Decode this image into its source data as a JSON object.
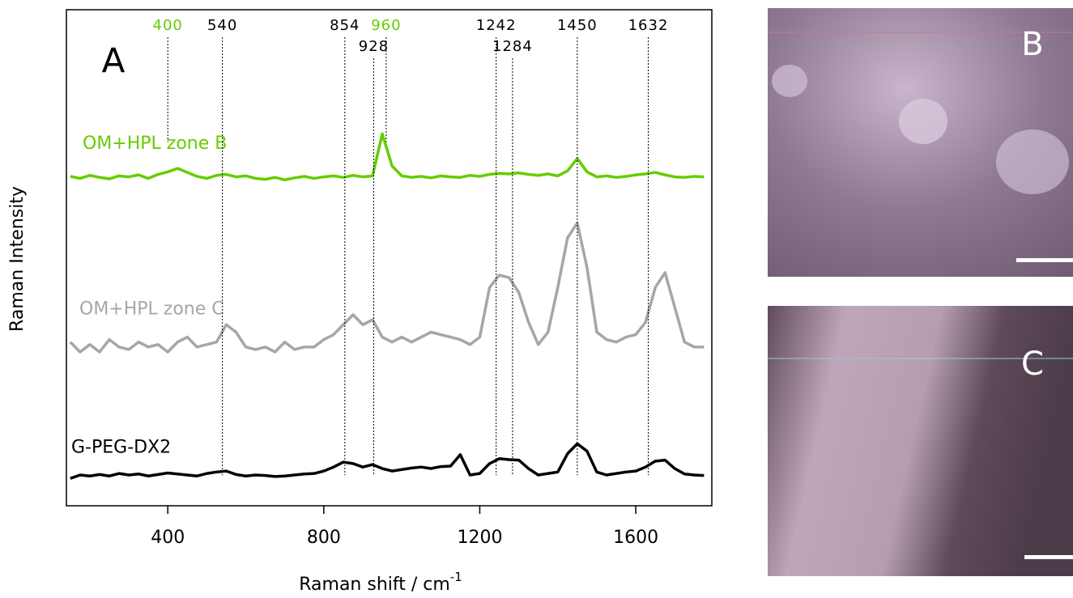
{
  "chart_data": {
    "type": "line",
    "panel_label": "A",
    "x_label": "Raman shift / cm",
    "x_label_superscript": "-1",
    "y_label": "Raman Intensity",
    "xlim": [
      140,
      1795
    ],
    "xticks": [
      400,
      800,
      1200,
      1600
    ],
    "ylim": [
      0,
      100
    ],
    "x": [
      150,
      175,
      200,
      225,
      250,
      275,
      300,
      325,
      350,
      375,
      400,
      425,
      450,
      475,
      500,
      525,
      550,
      575,
      600,
      625,
      650,
      675,
      700,
      725,
      750,
      775,
      800,
      825,
      850,
      875,
      900,
      925,
      950,
      975,
      1000,
      1025,
      1050,
      1075,
      1100,
      1125,
      1150,
      1175,
      1200,
      1225,
      1250,
      1275,
      1300,
      1325,
      1350,
      1375,
      1400,
      1425,
      1450,
      1475,
      1500,
      1525,
      1550,
      1575,
      1600,
      1625,
      1650,
      1675,
      1700,
      1725,
      1750,
      1775
    ],
    "series": [
      {
        "name": "OM+HPL zone B",
        "color": "#66cc00",
        "values": [
          66.4,
          66.0,
          66.6,
          66.2,
          65.9,
          66.5,
          66.3,
          66.7,
          66.0,
          66.8,
          67.3,
          68.0,
          67.2,
          66.4,
          66.0,
          66.6,
          66.8,
          66.3,
          66.5,
          66.0,
          65.8,
          66.2,
          65.7,
          66.1,
          66.4,
          66.0,
          66.3,
          66.5,
          66.2,
          66.6,
          66.3,
          66.5,
          75.0,
          68.5,
          66.5,
          66.2,
          66.4,
          66.1,
          66.5,
          66.3,
          66.2,
          66.6,
          66.4,
          66.8,
          67.0,
          66.9,
          67.1,
          66.8,
          66.6,
          66.9,
          66.5,
          67.5,
          70.0,
          67.3,
          66.3,
          66.5,
          66.2,
          66.4,
          66.7,
          66.9,
          67.2,
          66.7,
          66.3,
          66.2,
          66.4,
          66.3
        ]
      },
      {
        "name": "OM+HPL zone C",
        "color": "#a6a6a6",
        "values": [
          33,
          31,
          32.5,
          31,
          33.5,
          32,
          31.5,
          33,
          32,
          32.5,
          31,
          33,
          34,
          32,
          32.5,
          33,
          36.5,
          35,
          32,
          31.5,
          32,
          31,
          33,
          31.5,
          32,
          32,
          33.5,
          34.5,
          36.5,
          38.5,
          36.5,
          37.5,
          34,
          33,
          34,
          33,
          34,
          35,
          34.5,
          34,
          33.5,
          32.5,
          34,
          44,
          46.5,
          46,
          43,
          37,
          32.5,
          35,
          44,
          54,
          57,
          48,
          35,
          33.5,
          33,
          34,
          34.5,
          37,
          44,
          47,
          40,
          33,
          32,
          32
        ]
      },
      {
        "name": "G-PEG-DX2",
        "color": "#000000",
        "values": [
          5.5,
          6.2,
          6,
          6.3,
          6,
          6.5,
          6.2,
          6.4,
          6,
          6.3,
          6.6,
          6.4,
          6.2,
          6,
          6.5,
          6.8,
          7,
          6.3,
          6,
          6.2,
          6.1,
          5.9,
          6,
          6.2,
          6.4,
          6.5,
          7,
          7.8,
          8.8,
          8.5,
          7.8,
          8.3,
          7.5,
          7,
          7.3,
          7.6,
          7.8,
          7.5,
          7.9,
          8,
          10.3,
          6.2,
          6.5,
          8.5,
          9.5,
          9.3,
          9.2,
          7.5,
          6.2,
          6.5,
          6.8,
          10.5,
          12.5,
          11,
          6.8,
          6.2,
          6.5,
          6.8,
          7,
          7.8,
          9,
          9.2,
          7.5,
          6.4,
          6.2,
          6.1
        ]
      }
    ],
    "annotations": [
      {
        "x": 400,
        "color": "#66cc00"
      },
      {
        "x": 540,
        "color": "#000000"
      },
      {
        "x": 854,
        "color": "#000000"
      },
      {
        "x": 928,
        "color": "#000000"
      },
      {
        "x": 960,
        "color": "#66cc00"
      },
      {
        "x": 1242,
        "color": "#000000"
      },
      {
        "x": 1284,
        "color": "#000000"
      },
      {
        "x": 1450,
        "color": "#000000"
      },
      {
        "x": 1632,
        "color": "#000000"
      }
    ]
  },
  "images": [
    {
      "label": "B"
    },
    {
      "label": "C"
    }
  ]
}
